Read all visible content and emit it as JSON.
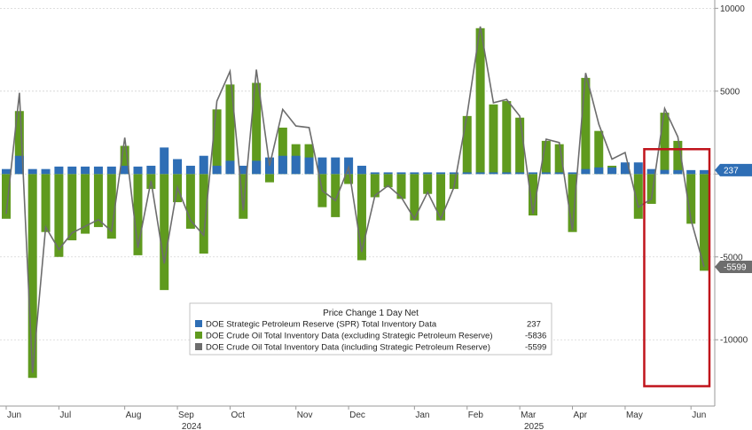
{
  "chart_data": {
    "type": "bar",
    "title": "",
    "xlabel": "",
    "ylabel": "",
    "ylim": [
      -14000,
      10500
    ],
    "y_ticks": [
      {
        "value": 10000,
        "label": "10000"
      },
      {
        "value": 5000,
        "label": "5000"
      },
      {
        "value": 0,
        "label": ""
      },
      {
        "value": -5000,
        "label": "-5000"
      },
      {
        "value": -10000,
        "label": "-10000"
      }
    ],
    "x_month_labels": [
      {
        "label": "Jun",
        "index": 0
      },
      {
        "label": "Jul",
        "index": 4
      },
      {
        "label": "Aug",
        "index": 9
      },
      {
        "label": "Sep",
        "index": 13
      },
      {
        "label": "Oct",
        "index": 17
      },
      {
        "label": "Nov",
        "index": 22
      },
      {
        "label": "Dec",
        "index": 26
      },
      {
        "label": "Jan",
        "index": 31
      },
      {
        "label": "Feb",
        "index": 35
      },
      {
        "label": "Mar",
        "index": 39
      },
      {
        "label": "Apr",
        "index": 43
      },
      {
        "label": "May",
        "index": 47
      },
      {
        "label": "Jun",
        "index": 52
      }
    ],
    "x_year_labels": [
      {
        "label": "2024",
        "index": 14
      },
      {
        "label": "2025",
        "index": 40
      }
    ],
    "last_value_labels": [
      {
        "label": "237",
        "value": 237,
        "color": "#2e6eb5"
      },
      {
        "label": "-5599",
        "value": -5599,
        "color": "#6d6d6d"
      }
    ],
    "legend": {
      "title": "Price Change 1 Day Net",
      "entries": [
        {
          "name": "DOE Strategic Petroleum Reserve (SPR) Total Inventory Data",
          "value": "237",
          "color": "#2e6eb5"
        },
        {
          "name": "DOE Crude Oil Total Inventory Data (excluding Strategic Petroleum Reserve)",
          "value": "-5836",
          "color": "#5f9a1e"
        },
        {
          "name": "DOE Crude Oil Total Inventory Data (including Strategic Petroleum Reserve)",
          "value": "-5599",
          "color": "#6d6d6d"
        }
      ]
    },
    "highlight_range": [
      49,
      53
    ],
    "series": [
      {
        "name": "DOE Strategic Petroleum Reserve (SPR) Total Inventory Data",
        "color": "#2e6eb5",
        "values": [
          300,
          1100,
          300,
          300,
          450,
          450,
          450,
          450,
          450,
          500,
          450,
          500,
          1600,
          900,
          500,
          1100,
          500,
          800,
          500,
          800,
          1000,
          1100,
          1100,
          1000,
          1000,
          1000,
          1000,
          500,
          100,
          100,
          100,
          100,
          100,
          100,
          100,
          100,
          100,
          100,
          100,
          100,
          100,
          100,
          100,
          100,
          300,
          400,
          400,
          700,
          700,
          300,
          250,
          237,
          237,
          237
        ]
      },
      {
        "name": "DOE Crude Oil Total Inventory Data (excluding Strategic Petroleum Reserve)",
        "color": "#5f9a1e",
        "values": [
          -2700,
          3800,
          -12300,
          -3500,
          -5000,
          -4000,
          -3600,
          -3200,
          -3900,
          1700,
          -4900,
          -900,
          -7000,
          -1700,
          -3300,
          -4800,
          3900,
          5400,
          -2700,
          5500,
          -500,
          2800,
          1800,
          1800,
          -2000,
          -2600,
          -600,
          -5200,
          -1400,
          -800,
          -1500,
          -2800,
          -1200,
          -2800,
          -900,
          3500,
          8800,
          4200,
          4400,
          3400,
          -2500,
          2000,
          1800,
          -3500,
          5800,
          2600,
          500,
          600,
          -2700,
          -1800,
          3700,
          2000,
          -3000,
          -5836
        ]
      }
    ],
    "net_series": {
      "name": "DOE Crude Oil Total Inventory Data (including Strategic Petroleum Reserve)",
      "color": "#6d6d6d",
      "values": [
        -2400,
        4900,
        -12000,
        -3200,
        -4550,
        -3550,
        -3150,
        -2750,
        -3450,
        2200,
        -4450,
        -400,
        -5400,
        -800,
        -2800,
        -3700,
        4400,
        6200,
        -2200,
        6300,
        500,
        3900,
        2900,
        2800,
        -1000,
        -1600,
        400,
        -4700,
        -1300,
        -700,
        -1400,
        -2700,
        -1100,
        -2700,
        -800,
        3600,
        8900,
        4300,
        4500,
        3500,
        -2400,
        2100,
        1900,
        -3400,
        6100,
        3000,
        900,
        1300,
        -2000,
        -1500,
        3950,
        2237,
        -2763,
        -5599
      ]
    }
  }
}
